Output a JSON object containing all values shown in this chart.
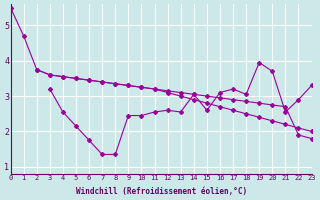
{
  "xlabel": "Windchill (Refroidissement éolien,°C)",
  "background_color": "#cce8e8",
  "grid_color": "#ffffff",
  "line_color": "#990099",
  "xlim": [
    0,
    23
  ],
  "ylim": [
    0.8,
    5.6
  ],
  "yticks": [
    1,
    2,
    3,
    4,
    5
  ],
  "xticks": [
    0,
    1,
    2,
    3,
    4,
    5,
    6,
    7,
    8,
    9,
    10,
    11,
    12,
    13,
    14,
    15,
    16,
    17,
    18,
    19,
    20,
    21,
    22,
    23
  ],
  "series_x": [
    [
      0,
      1,
      2,
      3,
      4,
      5,
      6,
      7,
      8,
      9,
      10,
      11,
      12,
      13,
      14,
      15,
      16,
      17,
      18,
      19,
      20,
      21,
      22,
      23
    ],
    [
      2,
      3,
      4,
      5,
      6,
      7,
      8,
      9,
      10,
      11,
      12,
      13,
      14,
      15,
      16,
      17,
      18,
      19,
      20,
      21,
      22,
      23
    ],
    [
      3,
      4,
      5,
      6,
      7,
      8,
      9,
      10,
      11,
      12,
      13,
      14,
      15,
      16,
      17,
      18,
      19,
      20,
      21,
      22,
      23
    ]
  ],
  "series_y": [
    [
      5.5,
      4.7,
      3.75,
      3.6,
      3.55,
      3.5,
      3.45,
      3.4,
      3.35,
      3.3,
      3.25,
      3.2,
      3.15,
      3.1,
      3.05,
      3.0,
      2.95,
      2.9,
      2.85,
      2.8,
      2.75,
      2.7,
      1.9,
      1.8
    ],
    [
      3.75,
      3.6,
      3.55,
      3.5,
      3.45,
      3.4,
      3.35,
      3.3,
      3.25,
      3.2,
      3.1,
      3.0,
      2.9,
      2.8,
      2.7,
      2.6,
      2.5,
      2.4,
      2.3,
      2.2,
      2.1,
      2.0
    ],
    [
      3.2,
      2.55,
      2.15,
      1.75,
      1.35,
      1.35,
      2.45,
      2.45,
      2.55,
      2.6,
      2.55,
      3.05,
      2.6,
      3.1,
      3.2,
      3.05,
      3.95,
      3.7,
      2.55,
      2.9,
      3.3
    ]
  ]
}
